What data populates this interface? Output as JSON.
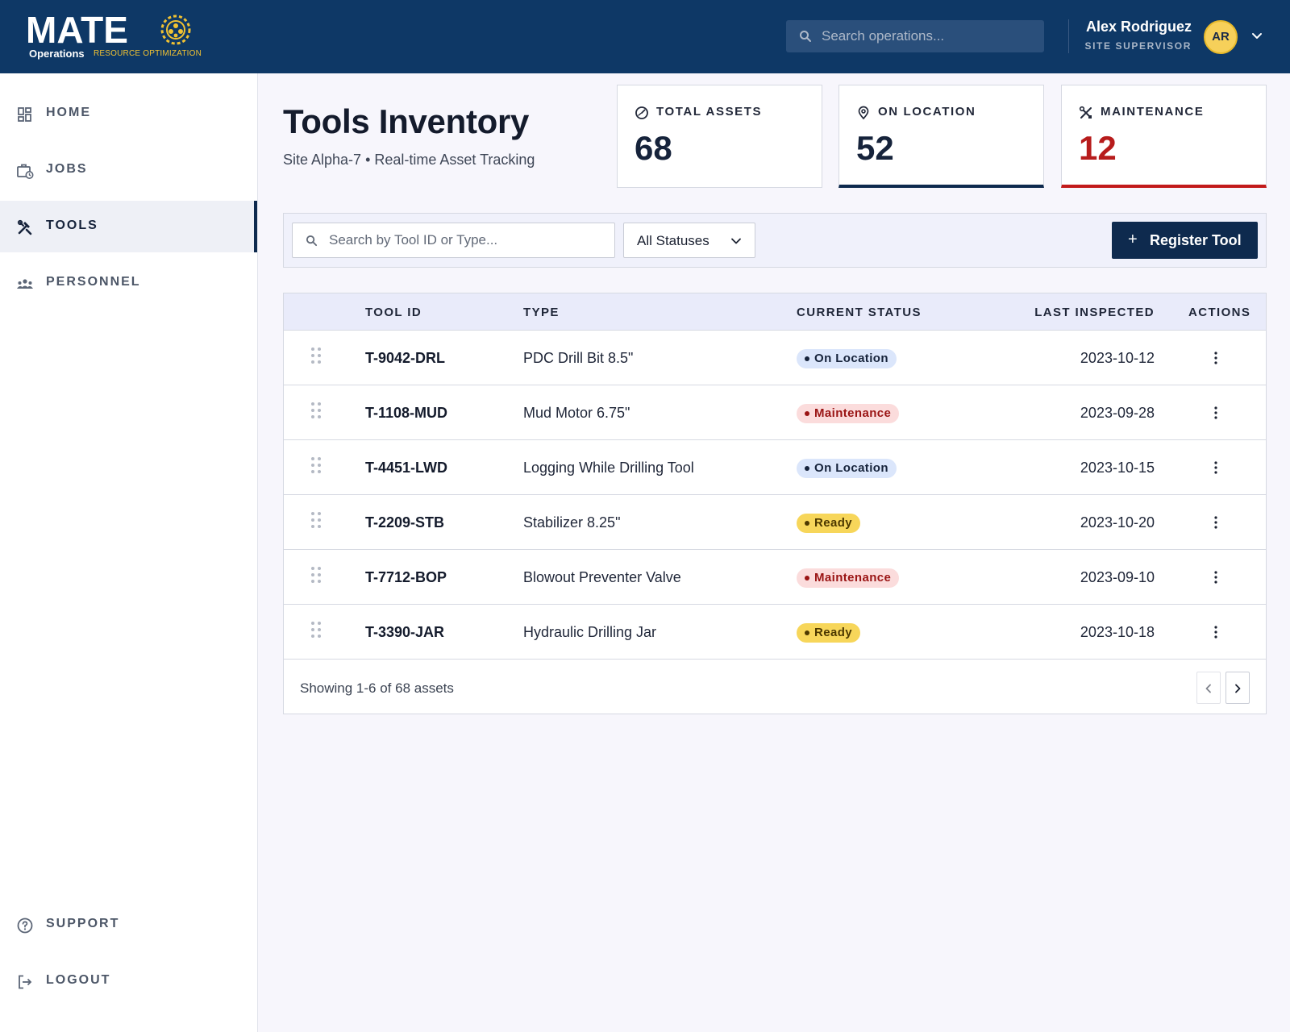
{
  "brand": {
    "wordmark": "MATE",
    "sub_primary": "Operations",
    "sub_secondary": "RESOURCE OPTIMIZATION"
  },
  "header": {
    "search_placeholder": "Search operations...",
    "user_name": "Alex Rodriguez",
    "user_role": "SITE SUPERVISOR",
    "user_initials": "AR"
  },
  "sidebar": {
    "items": [
      {
        "label": "HOME",
        "icon": "dashboard-icon"
      },
      {
        "label": "JOBS",
        "icon": "briefcase-clock-icon"
      },
      {
        "label": "TOOLS",
        "icon": "tools-icon",
        "active": true
      },
      {
        "label": "PERSONNEL",
        "icon": "people-icon"
      }
    ],
    "bottom": [
      {
        "label": "SUPPORT",
        "icon": "help-circle-icon"
      },
      {
        "label": "LOGOUT",
        "icon": "logout-icon"
      }
    ]
  },
  "page": {
    "title": "Tools Inventory",
    "subtitle": "Site Alpha-7 • Real-time Asset Tracking"
  },
  "stats": [
    {
      "label": "TOTAL ASSETS",
      "value": "68",
      "icon": "gauge-icon"
    },
    {
      "label": "ON LOCATION",
      "value": "52",
      "icon": "location-pin-icon"
    },
    {
      "label": "MAINTENANCE",
      "value": "12",
      "icon": "wrench-cross-icon"
    }
  ],
  "filters": {
    "search_placeholder": "Search by Tool ID or Type...",
    "status_selected": "All Statuses",
    "register_label": "Register Tool"
  },
  "table": {
    "columns": [
      "TOOL ID",
      "TYPE",
      "CURRENT STATUS",
      "LAST INSPECTED",
      "ACTIONS"
    ],
    "rows": [
      {
        "id": "T-9042-DRL",
        "type": "PDC Drill Bit 8.5\"",
        "status": "On Location",
        "date": "2023-10-12"
      },
      {
        "id": "T-1108-MUD",
        "type": "Mud Motor 6.75\"",
        "status": "Maintenance",
        "date": "2023-09-28"
      },
      {
        "id": "T-4451-LWD",
        "type": "Logging While Drilling Tool",
        "status": "On Location",
        "date": "2023-10-15"
      },
      {
        "id": "T-2209-STB",
        "type": "Stabilizer 8.25\"",
        "status": "Ready",
        "date": "2023-10-20"
      },
      {
        "id": "T-7712-BOP",
        "type": "Blowout Preventer Valve",
        "status": "Maintenance",
        "date": "2023-09-10"
      },
      {
        "id": "T-3390-JAR",
        "type": "Hydraulic Drilling Jar",
        "status": "Ready",
        "date": "2023-10-18"
      }
    ],
    "footer": "Showing 1-6 of 68 assets"
  },
  "colors": {
    "navy": "#0e2a4e",
    "header_bg": "#0e3866",
    "accent_yellow": "#f6d05a",
    "alert_red": "#c21a1a"
  }
}
